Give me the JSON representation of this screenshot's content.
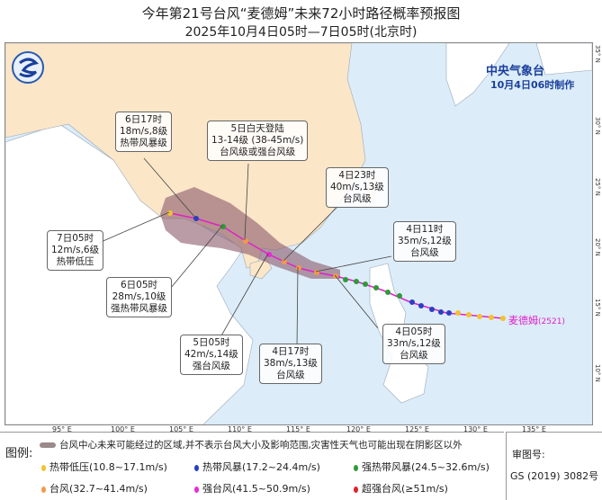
{
  "title": "今年第21号台风“麦德姆”未来72小时路径概率预报图",
  "subtitle": "2025年10月4日05时—7日05时(北京时)",
  "agency": {
    "name": "中央气象台",
    "made": "10月4日06时制作"
  },
  "typhoon_label": {
    "name": "麦德姆",
    "code": "(2521)"
  },
  "longitudes": [
    "95° E",
    "100° E",
    "105° E",
    "110° E",
    "115° E",
    "120° E",
    "125° E",
    "130° E",
    "135° E"
  ],
  "latitudes": [
    "35° N",
    "30° N",
    "25° N",
    "20° N",
    "15° N",
    "10° N"
  ],
  "forecast_points": [
    {
      "time": "4日05时",
      "wind": "33m/s,12级",
      "level": "台风级"
    },
    {
      "time": "4日11时",
      "wind": "35m/s,12级",
      "level": "台风级"
    },
    {
      "time": "4日17时",
      "wind": "38m/s,13级",
      "level": "台风级"
    },
    {
      "time": "4日23时",
      "wind": "40m/s,13级",
      "level": "台风级"
    },
    {
      "time": "5日05时",
      "wind": "42m/s,14级",
      "level": "强台风级"
    },
    {
      "time": "5日白天登陆",
      "wind": "13-14级 (38-45m/s)",
      "level": "台风级或强台风级"
    },
    {
      "time": "6日05时",
      "wind": "28m/s,10级",
      "level": "强热带风暴级"
    },
    {
      "time": "6日17时",
      "wind": "18m/s,8级",
      "level": "热带风暴级"
    },
    {
      "time": "7日05时",
      "wind": "12m/s,6级",
      "level": "热带低压"
    }
  ],
  "legend": {
    "title": "图例:",
    "cone": "台风中心未来可能经过的区域,并不表示台风大小及影响范围,灾害性天气也可能出现在阴影区以外",
    "items": [
      {
        "label": "热带低压(10.8~17.1m/s)",
        "color": "#f2c230"
      },
      {
        "label": "热带风暴(17.2~24.4m/s)",
        "color": "#2a3fc4"
      },
      {
        "label": "强热带风暴(24.5~32.6m/s)",
        "color": "#2e9a3a"
      },
      {
        "label": "台风(32.7~41.4m/s)",
        "color": "#f29a4a"
      },
      {
        "label": "强台风(41.5~50.9m/s)",
        "color": "#e62ad8"
      },
      {
        "label": "超强台风(≥51m/s)",
        "color": "#e0202a"
      }
    ]
  },
  "review": {
    "label": "审图号:",
    "number": "GS (2019) 3082号"
  },
  "colors": {
    "land_china": "#fbe6c8",
    "land_other": "#ffffff",
    "sea": "#dcecf8",
    "cone": "#8a5a6a",
    "track": "#e020c8"
  }
}
